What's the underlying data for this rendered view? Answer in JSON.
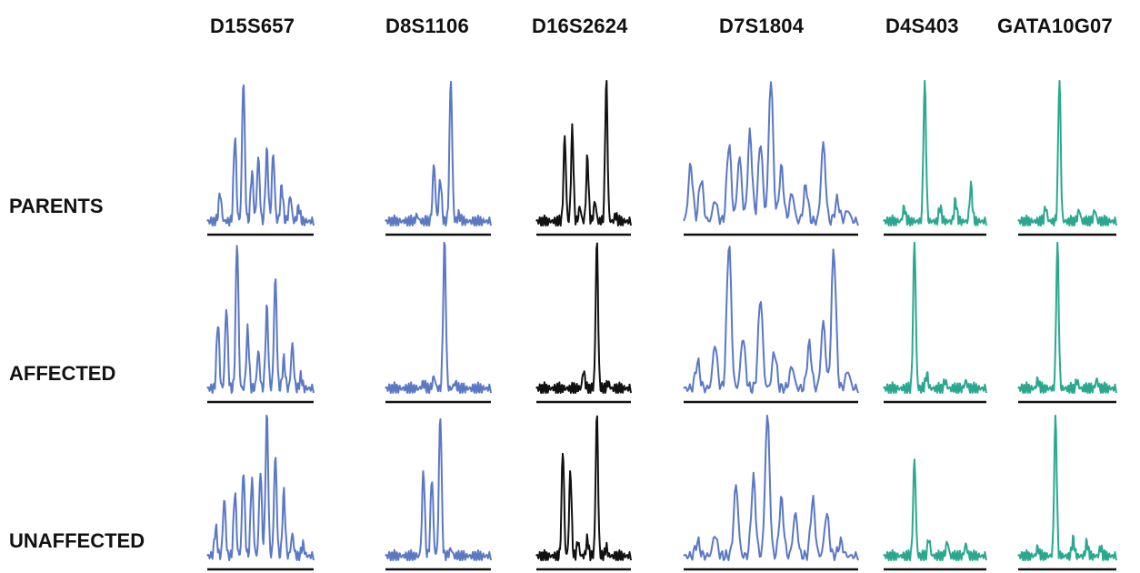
{
  "markers": [
    {
      "id": "d15s657",
      "label": "D15S657",
      "color": "#5a78c4"
    },
    {
      "id": "d8s1106",
      "label": "D8S1106",
      "color": "#5a78c4"
    },
    {
      "id": "d16s2624",
      "label": "D16S2624",
      "color": "#111111"
    },
    {
      "id": "d7s1804",
      "label": "D7S1804",
      "color": "#5a78c4"
    },
    {
      "id": "d4s403",
      "label": "D4S403",
      "color": "#2aa88f"
    },
    {
      "id": "gata10g07",
      "label": "GATA10G07",
      "color": "#2aa88f"
    }
  ],
  "groups": [
    {
      "id": "parents",
      "label": "PARENTS"
    },
    {
      "id": "affected",
      "label": "AFFECTED"
    },
    {
      "id": "unaffected",
      "label": "UNAFFECTED"
    }
  ],
  "baseline_color": "#111111",
  "traces": {
    "parents": [
      [
        [
          0.12,
          0.2
        ],
        [
          0.26,
          0.6
        ],
        [
          0.34,
          1.0
        ],
        [
          0.42,
          0.35
        ],
        [
          0.48,
          0.45
        ],
        [
          0.56,
          0.5
        ],
        [
          0.62,
          0.48
        ],
        [
          0.7,
          0.25
        ],
        [
          0.78,
          0.18
        ],
        [
          0.86,
          0.1
        ]
      ],
      [
        [
          0.3,
          0.04
        ],
        [
          0.46,
          0.4
        ],
        [
          0.52,
          0.3
        ],
        [
          0.62,
          1.0
        ],
        [
          0.7,
          0.05
        ]
      ],
      [
        [
          0.3,
          0.6
        ],
        [
          0.38,
          0.65
        ],
        [
          0.46,
          0.1
        ],
        [
          0.54,
          0.45
        ],
        [
          0.62,
          0.14
        ],
        [
          0.74,
          1.0
        ],
        [
          0.84,
          0.04
        ]
      ],
      [
        [
          0.04,
          0.4
        ],
        [
          0.1,
          0.3
        ],
        [
          0.18,
          0.15
        ],
        [
          0.26,
          0.55
        ],
        [
          0.32,
          0.45
        ],
        [
          0.38,
          0.62
        ],
        [
          0.44,
          0.56
        ],
        [
          0.5,
          1.0
        ],
        [
          0.56,
          0.38
        ],
        [
          0.62,
          0.2
        ],
        [
          0.7,
          0.25
        ],
        [
          0.8,
          0.55
        ],
        [
          0.88,
          0.15
        ],
        [
          0.94,
          0.08
        ]
      ],
      [
        [
          0.2,
          0.1
        ],
        [
          0.4,
          1.0
        ],
        [
          0.55,
          0.1
        ],
        [
          0.7,
          0.15
        ],
        [
          0.85,
          0.25
        ]
      ],
      [
        [
          0.28,
          0.1
        ],
        [
          0.42,
          1.0
        ],
        [
          0.62,
          0.08
        ],
        [
          0.78,
          0.08
        ]
      ]
    ],
    "affected": [
      [
        [
          0.1,
          0.45
        ],
        [
          0.18,
          0.55
        ],
        [
          0.28,
          1.0
        ],
        [
          0.38,
          0.4
        ],
        [
          0.48,
          0.25
        ],
        [
          0.56,
          0.55
        ],
        [
          0.64,
          0.75
        ],
        [
          0.72,
          0.2
        ],
        [
          0.8,
          0.3
        ],
        [
          0.88,
          0.08
        ]
      ],
      [
        [
          0.36,
          0.04
        ],
        [
          0.46,
          0.08
        ],
        [
          0.56,
          1.0
        ],
        [
          0.66,
          0.04
        ]
      ],
      [
        [
          0.5,
          0.12
        ],
        [
          0.64,
          1.0
        ],
        [
          0.76,
          0.04
        ]
      ],
      [
        [
          0.08,
          0.18
        ],
        [
          0.18,
          0.3
        ],
        [
          0.26,
          1.0
        ],
        [
          0.34,
          0.35
        ],
        [
          0.44,
          0.62
        ],
        [
          0.52,
          0.25
        ],
        [
          0.62,
          0.15
        ],
        [
          0.72,
          0.3
        ],
        [
          0.8,
          0.45
        ],
        [
          0.86,
          0.95
        ],
        [
          0.94,
          0.12
        ]
      ],
      [
        [
          0.3,
          1.0
        ],
        [
          0.42,
          0.1
        ],
        [
          0.6,
          0.05
        ],
        [
          0.8,
          0.05
        ]
      ],
      [
        [
          0.2,
          0.06
        ],
        [
          0.4,
          1.0
        ],
        [
          0.6,
          0.05
        ],
        [
          0.8,
          0.06
        ]
      ]
    ],
    "unaffected": [
      [
        [
          0.08,
          0.2
        ],
        [
          0.16,
          0.4
        ],
        [
          0.26,
          0.45
        ],
        [
          0.34,
          0.6
        ],
        [
          0.42,
          0.55
        ],
        [
          0.5,
          0.6
        ],
        [
          0.56,
          1.0
        ],
        [
          0.64,
          0.7
        ],
        [
          0.72,
          0.45
        ],
        [
          0.8,
          0.15
        ],
        [
          0.9,
          0.08
        ]
      ],
      [
        [
          0.36,
          0.6
        ],
        [
          0.44,
          0.55
        ],
        [
          0.52,
          1.0
        ],
        [
          0.62,
          0.05
        ]
      ],
      [
        [
          0.28,
          0.75
        ],
        [
          0.36,
          0.6
        ],
        [
          0.44,
          0.1
        ],
        [
          0.54,
          0.12
        ],
        [
          0.64,
          1.0
        ],
        [
          0.74,
          0.06
        ]
      ],
      [
        [
          0.08,
          0.1
        ],
        [
          0.18,
          0.15
        ],
        [
          0.3,
          0.5
        ],
        [
          0.4,
          0.55
        ],
        [
          0.48,
          1.0
        ],
        [
          0.56,
          0.4
        ],
        [
          0.64,
          0.3
        ],
        [
          0.74,
          0.4
        ],
        [
          0.82,
          0.3
        ],
        [
          0.9,
          0.1
        ]
      ],
      [
        [
          0.3,
          0.68
        ],
        [
          0.44,
          0.12
        ],
        [
          0.62,
          0.1
        ],
        [
          0.8,
          0.08
        ]
      ],
      [
        [
          0.2,
          0.06
        ],
        [
          0.38,
          1.0
        ],
        [
          0.56,
          0.12
        ],
        [
          0.7,
          0.1
        ],
        [
          0.84,
          0.06
        ]
      ]
    ]
  }
}
